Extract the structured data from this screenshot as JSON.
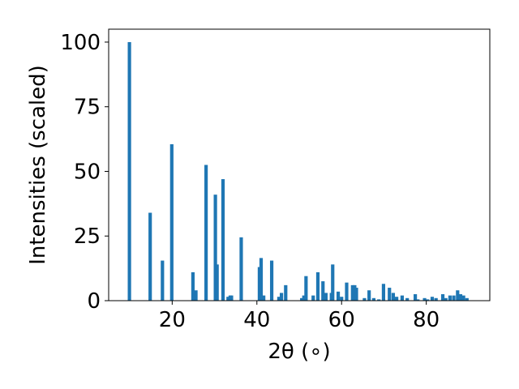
{
  "chart_data": {
    "type": "bar",
    "xlabel": "2θ (∘)",
    "ylabel": "Intensities (scaled)",
    "xlim": [
      5,
      95
    ],
    "ylim": [
      0,
      105
    ],
    "xticks": [
      20,
      40,
      60,
      80
    ],
    "yticks": [
      0,
      25,
      50,
      75,
      100
    ],
    "bar_color": "#1f77b4",
    "bar_width": 0.8,
    "grid": false,
    "legend": "none",
    "x": [
      9.9,
      14.8,
      17.7,
      19.9,
      24.9,
      25.6,
      28.0,
      30.2,
      30.6,
      32.0,
      33.2,
      33.7,
      34.0,
      36.3,
      40.6,
      41.0,
      41.6,
      43.5,
      45.2,
      45.8,
      46.8,
      50.6,
      51.1,
      51.6,
      53.3,
      54.4,
      55.6,
      56.3,
      57.6,
      57.9,
      59.2,
      60.0,
      61.2,
      62.6,
      63.1,
      63.5,
      65.4,
      66.5,
      67.6,
      68.8,
      69.9,
      71.3,
      72.2,
      73.0,
      74.3,
      75.5,
      77.4,
      78.0,
      79.6,
      80.3,
      81.4,
      82.3,
      83.9,
      84.6,
      85.6,
      86.5,
      87.4,
      88.1,
      88.8,
      89.6
    ],
    "values": [
      100,
      34,
      15.5,
      60.5,
      11,
      4,
      52.5,
      41,
      14,
      47,
      1.5,
      2,
      2,
      24.5,
      13,
      16.5,
      2,
      15.5,
      1.5,
      3,
      6,
      1,
      2,
      9.5,
      2,
      11,
      7.5,
      3,
      3,
      14,
      3.5,
      1.5,
      7,
      6,
      6,
      5,
      1,
      4,
      1,
      0.5,
      6.5,
      5,
      3,
      1.5,
      2,
      1,
      2.5,
      0.5,
      1,
      0.5,
      1.5,
      1,
      2.5,
      1,
      2,
      2,
      4,
      2.5,
      2,
      1
    ]
  }
}
